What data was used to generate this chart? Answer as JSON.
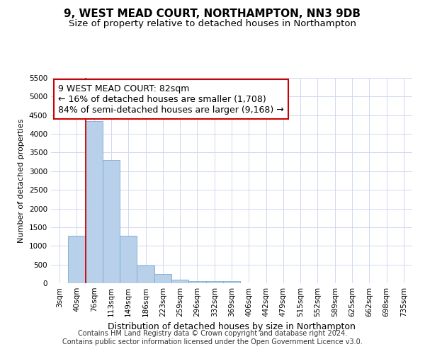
{
  "title": "9, WEST MEAD COURT, NORTHAMPTON, NN3 9DB",
  "subtitle": "Size of property relative to detached houses in Northampton",
  "xlabel": "Distribution of detached houses by size in Northampton",
  "ylabel": "Number of detached properties",
  "footer_line1": "Contains HM Land Registry data © Crown copyright and database right 2024.",
  "footer_line2": "Contains public sector information licensed under the Open Government Licence v3.0.",
  "bar_labels": [
    "3sqm",
    "40sqm",
    "76sqm",
    "113sqm",
    "149sqm",
    "186sqm",
    "223sqm",
    "259sqm",
    "296sqm",
    "332sqm",
    "369sqm",
    "406sqm",
    "442sqm",
    "479sqm",
    "515sqm",
    "552sqm",
    "589sqm",
    "625sqm",
    "662sqm",
    "698sqm",
    "735sqm"
  ],
  "bar_values": [
    0,
    1280,
    4350,
    3300,
    1280,
    480,
    240,
    90,
    60,
    50,
    50,
    0,
    0,
    0,
    0,
    0,
    0,
    0,
    0,
    0,
    0
  ],
  "bar_color": "#b8d0ea",
  "bar_edge_color": "#7baad4",
  "annotation_line1": "9 WEST MEAD COURT: 82sqm",
  "annotation_line2": "← 16% of detached houses are smaller (1,708)",
  "annotation_line3": "84% of semi-detached houses are larger (9,168) →",
  "annotation_box_color": "#ffffff",
  "annotation_box_edge_color": "#cc0000",
  "vline_color": "#cc0000",
  "vline_x_index": 2,
  "ylim": [
    0,
    5500
  ],
  "yticks": [
    0,
    500,
    1000,
    1500,
    2000,
    2500,
    3000,
    3500,
    4000,
    4500,
    5000,
    5500
  ],
  "grid_color": "#d0d8f0",
  "background_color": "#ffffff",
  "title_fontsize": 11,
  "subtitle_fontsize": 9.5,
  "xlabel_fontsize": 9,
  "ylabel_fontsize": 8,
  "tick_fontsize": 7.5,
  "annotation_fontsize": 9,
  "footer_fontsize": 7
}
